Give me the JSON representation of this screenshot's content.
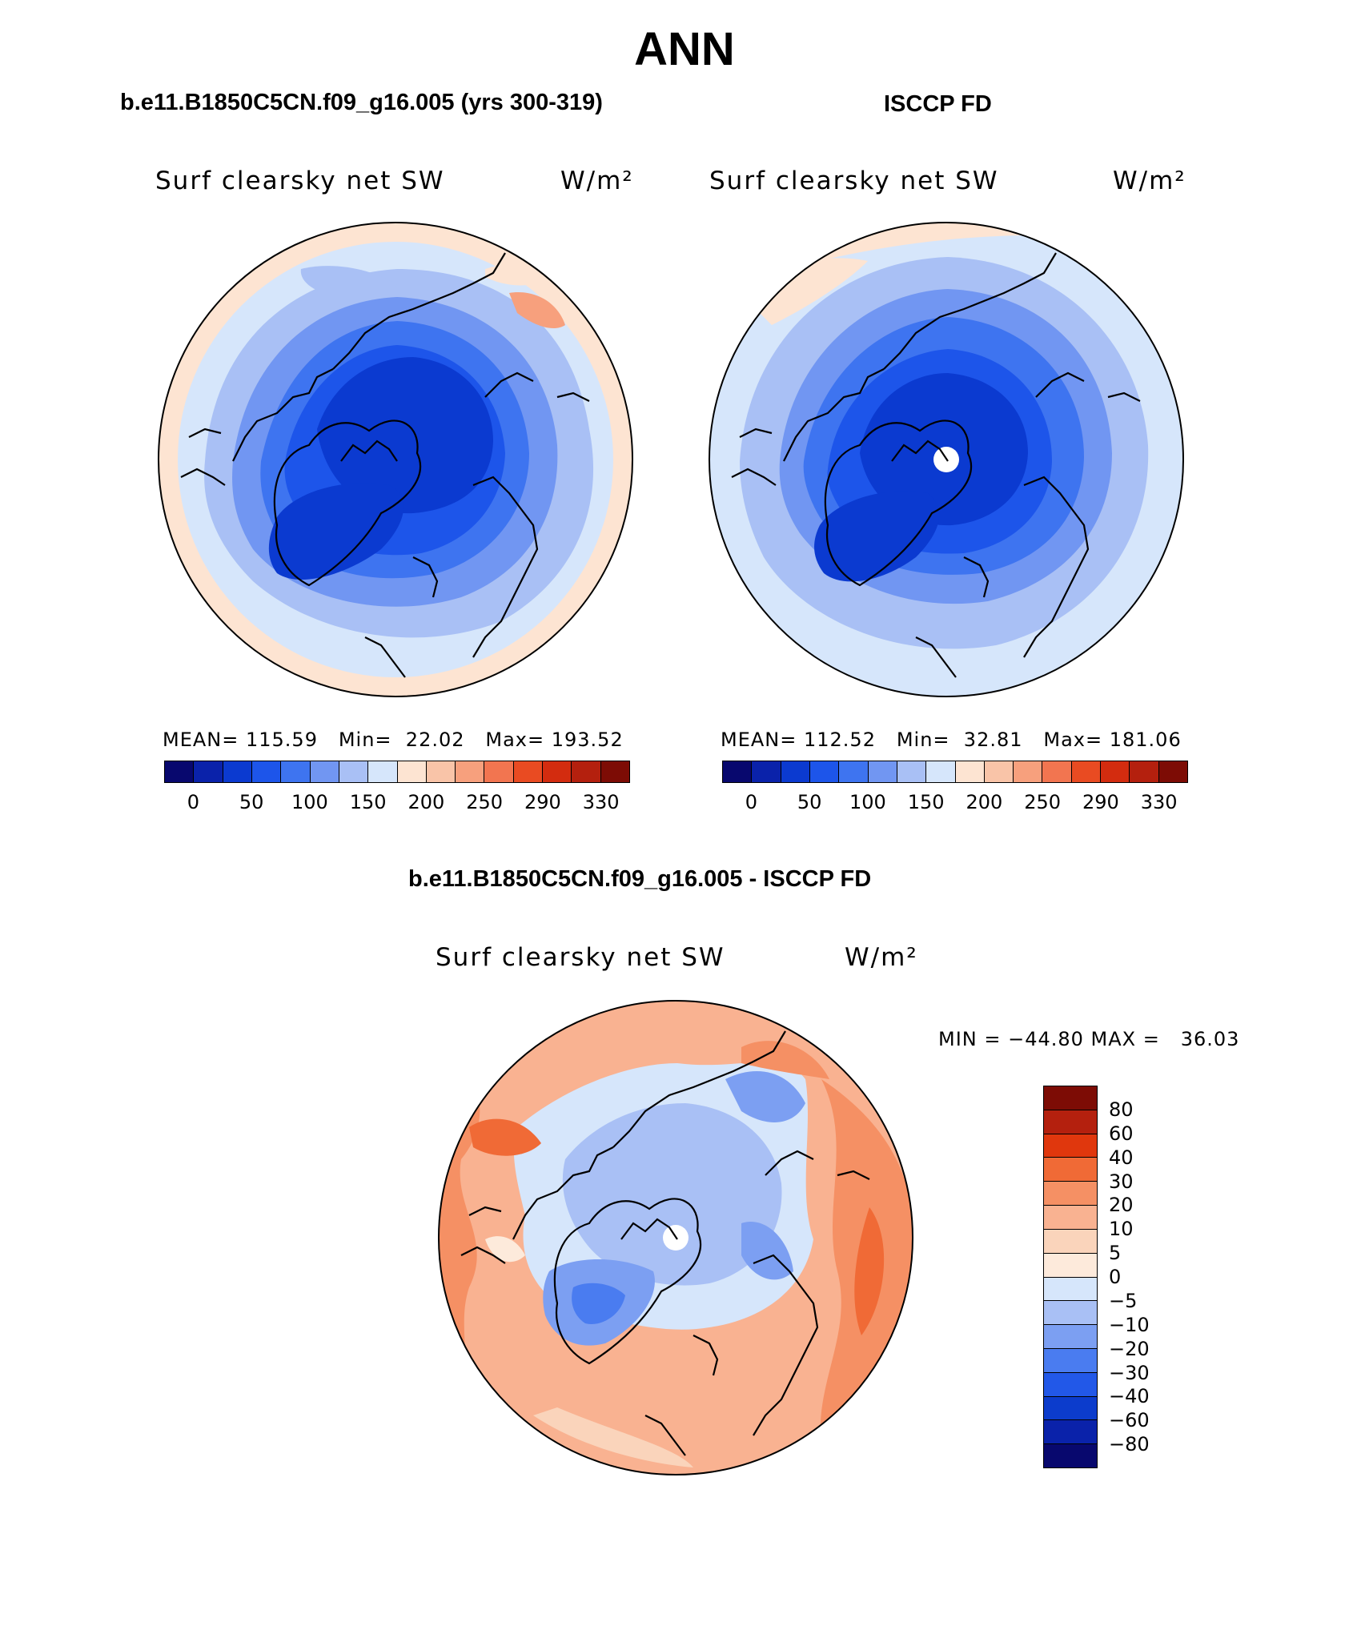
{
  "figure": {
    "title": "ANN",
    "panel_left_title": "b.e11.B1850C5CN.f09_g16.005 (yrs 300-319)",
    "panel_right_title": "ISCCP FD",
    "diff_title": "b.e11.B1850C5CN.f09_g16.005 - ISCCP FD"
  },
  "panels": {
    "left": {
      "label": "Surf clearsky net SW",
      "units": "W/m²",
      "stats": "MEAN= 115.59   Min=  22.02   Max= 193.52"
    },
    "right": {
      "label": "Surf clearsky net SW",
      "units": "W/m²",
      "stats": "MEAN= 112.52   Min=  32.81   Max= 181.06"
    },
    "diff": {
      "label": "Surf clearsky net SW",
      "units": "W/m²",
      "stats": "MIN = −44.80 MAX =   36.03"
    }
  },
  "colorbars": {
    "abs_ticks": [
      "0",
      "50",
      "100",
      "150",
      "200",
      "250",
      "290",
      "330"
    ],
    "abs_colors": [
      "#08086e",
      "#0a22aa",
      "#0b3ad0",
      "#1d55ea",
      "#3e74f0",
      "#7196f2",
      "#a9c0f5",
      "#d6e6fb",
      "#fde4d2",
      "#f9c4a8",
      "#f7a07d",
      "#f27550",
      "#e94b22",
      "#d32c0f",
      "#b4200e",
      "#7d0c05"
    ],
    "diff_ticks": [
      "80",
      "60",
      "40",
      "30",
      "20",
      "10",
      "5",
      "0",
      "−5",
      "−10",
      "−20",
      "−30",
      "−40",
      "−60",
      "−80"
    ],
    "diff_colors": [
      "#7d0c05",
      "#b4200e",
      "#e0370d",
      "#f06a36",
      "#f59064",
      "#f9b291",
      "#fad4bb",
      "#fdeadb",
      "#d6e6fb",
      "#a9c0f5",
      "#7c9ff2",
      "#4a7cf0",
      "#2258e8",
      "#0c3ccc",
      "#0a22aa",
      "#08086e"
    ]
  },
  "maps": {
    "projection": "polar stereographic, North Pole",
    "left_pattern": "deep blue over Arctic Ocean and Greenland, lighter blues toward edge, pale orange at outer rim",
    "right_pattern": "deep blue over central Arctic with missing-data hole at pole, lighter blues toward edge",
    "diff_pattern": "orange/red positive differences at lower latitudes, blue negative differences over Arctic, white hole at pole"
  }
}
